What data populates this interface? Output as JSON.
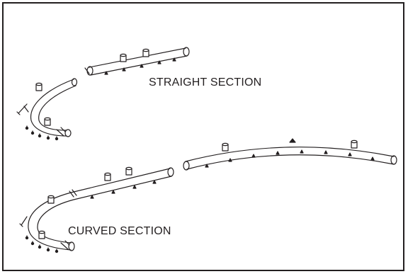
{
  "labels": {
    "straight": "STRAIGHT SECTION",
    "curved": "CURVED SECTION"
  },
  "colors": {
    "line": "#231f20",
    "fill": "#ffffff",
    "border": "#231f20"
  }
}
